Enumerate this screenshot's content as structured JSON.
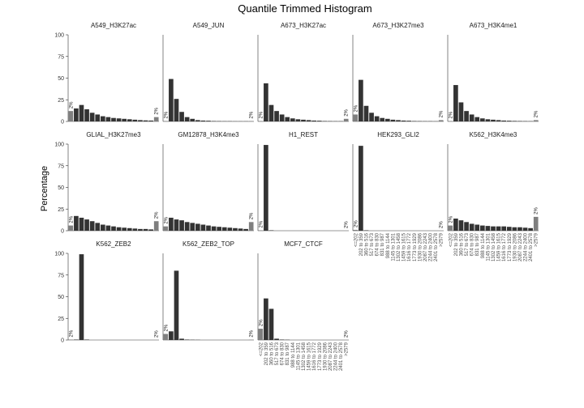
{
  "chart_data": {
    "type": "bar",
    "title": "Quantile Trimmed Histogram",
    "ylabel": "Percentage",
    "xlabel": "",
    "ylim": [
      0,
      100
    ],
    "yticks": [
      0,
      25,
      50,
      75,
      100
    ],
    "categories": [
      "<=202",
      "202 to 359",
      "360 to 516",
      "517 to 673",
      "674 to 830",
      "831 to 987",
      "988 to 1144",
      "1145 to 1301",
      "1302 to 1458",
      "1459 to 1615",
      "1616 to 1772",
      "1773 to 1929",
      "1930 to 2086",
      "2087 to 2243",
      "2244 to 2400",
      "2401 to 2578",
      ">2579"
    ],
    "edge_label": "2%",
    "colors": {
      "bar": "#333333",
      "edge_bar": "#7f7f7f"
    },
    "panels": [
      {
        "name": "A549_H3K27ac",
        "values": [
          12,
          15,
          19,
          14,
          10,
          8,
          6,
          5,
          4,
          3.5,
          3,
          2.5,
          2,
          1.5,
          1.2,
          1,
          5
        ]
      },
      {
        "name": "A549_JUN",
        "values": [
          0.5,
          49,
          26,
          11,
          5,
          3,
          1.5,
          1,
          0.8,
          0.5,
          0.4,
          0.3,
          0.3,
          0.2,
          0.2,
          0.2,
          0.5
        ]
      },
      {
        "name": "A673_H3K27ac",
        "values": [
          0.5,
          44,
          19,
          12,
          8,
          5,
          3.5,
          2.5,
          2,
          1.5,
          1,
          0.8,
          0.5,
          0.4,
          0.3,
          0.3,
          3
        ]
      },
      {
        "name": "A673_H3K27me3",
        "values": [
          8,
          48,
          18,
          10,
          6,
          4,
          3,
          2,
          1.5,
          1,
          0.8,
          0.5,
          0.4,
          0.3,
          0.3,
          0.2,
          1.5
        ]
      },
      {
        "name": "A673_H3K4me1",
        "values": [
          0.5,
          42,
          22,
          12,
          8,
          5,
          3.5,
          2.5,
          2,
          1.5,
          1,
          0.8,
          0.6,
          0.5,
          0.4,
          0.3,
          1.5
        ]
      },
      {
        "name": "GLIAL_H3K27me3",
        "values": [
          6,
          17,
          15,
          13,
          11,
          9,
          7,
          6,
          5,
          4,
          3.5,
          3,
          2.5,
          2,
          2,
          1.5,
          11
        ]
      },
      {
        "name": "GM12878_H3K4me3",
        "values": [
          5,
          15,
          13,
          12,
          10,
          9,
          8,
          7,
          6,
          5,
          4.5,
          4,
          3.5,
          3,
          2.5,
          2,
          10
        ]
      },
      {
        "name": "H1_REST",
        "values": [
          0.5,
          99,
          0.5,
          0,
          0,
          0,
          0,
          0,
          0,
          0,
          0,
          0,
          0,
          0,
          0,
          0,
          0
        ]
      },
      {
        "name": "HEK293_GLI2",
        "values": [
          1,
          98,
          0.5,
          0,
          0,
          0,
          0,
          0,
          0,
          0,
          0,
          0,
          0,
          0,
          0,
          0,
          0
        ]
      },
      {
        "name": "K562_H3K4me3",
        "values": [
          6,
          14,
          12,
          10,
          8,
          7,
          6,
          5.5,
          5,
          5,
          5,
          4.5,
          4,
          4,
          3.5,
          3,
          16
        ]
      },
      {
        "name": "K562_ZEB2",
        "values": [
          0.5,
          0.5,
          99,
          0.5,
          0,
          0,
          0,
          0,
          0,
          0,
          0,
          0,
          0,
          0,
          0,
          0,
          0
        ]
      },
      {
        "name": "K562_ZEB2_TOP",
        "values": [
          7,
          10,
          80,
          1.5,
          0.5,
          0.3,
          0.2,
          0,
          0,
          0,
          0,
          0,
          0,
          0,
          0,
          0,
          0.3
        ]
      },
      {
        "name": "MCF7_CTCF",
        "values": [
          13,
          48,
          36,
          1.5,
          0.5,
          0.3,
          0,
          0,
          0,
          0,
          0,
          0,
          0,
          0,
          0,
          0,
          0
        ]
      }
    ]
  }
}
